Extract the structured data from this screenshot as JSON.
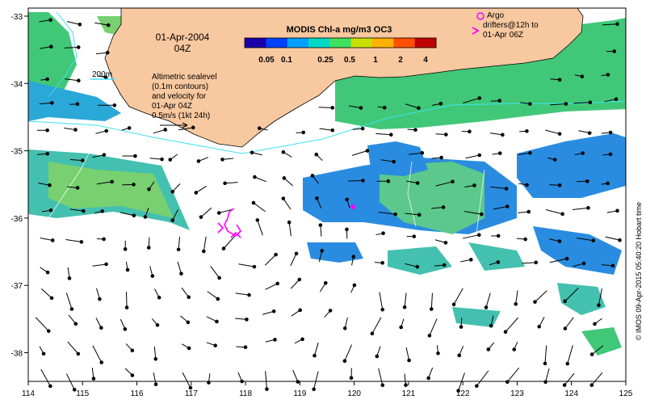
{
  "date_line": "01-Apr-2004",
  "time_line": "04Z",
  "colorbar": {
    "title": "MODIS Chl-a mg/m3 OC3",
    "ticks": [
      "0.05",
      "0.1",
      "0.25",
      "0.5",
      "1",
      "2",
      "4"
    ],
    "colors": [
      "#1a00a8",
      "#0040ff",
      "#00a0ff",
      "#00d8c8",
      "#40e060",
      "#c8e000",
      "#ffb000",
      "#ff5000",
      "#c00000"
    ]
  },
  "depth_contour_label": "200m",
  "sealevel_note": [
    "Altimetric sealevel",
    "(0.1m contours)",
    "and velocity for",
    "01-Apr 04Z",
    "0.5m/s (1kt 24h)"
  ],
  "argo_legend": [
    "Argo",
    "drifters@12h to",
    "01-Apr 06Z"
  ],
  "credit": "© IMOS 09-Apr-2015 05:40:20 Hobart time",
  "x_axis": {
    "ticks": [
      "114",
      "115",
      "116",
      "117",
      "118",
      "119",
      "120",
      "121",
      "122",
      "123",
      "124",
      "125"
    ]
  },
  "y_axis": {
    "ticks": [
      "-33",
      "-34",
      "-35",
      "-36",
      "-37",
      "-38"
    ]
  },
  "colors": {
    "land": "#f8c8a0",
    "ocean": "#ffffff",
    "argo": "#ff00ff",
    "contour": "#40e0f0"
  }
}
